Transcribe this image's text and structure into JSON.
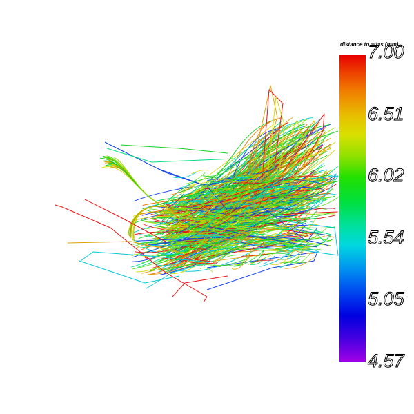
{
  "colorbar": {
    "title": "distance to atlas (mm)",
    "ticks": [
      "7.00",
      "6.51",
      "6.02",
      "5.54",
      "5.05",
      "4.57"
    ],
    "colors": {
      "high": "#e80000",
      "mid": "#20e000",
      "low_mid": "#00d8e0",
      "low": "#0000e0",
      "min": "#a000e8"
    }
  },
  "scene": {
    "background": "#ffffff",
    "palette": [
      "#e81010",
      "#e0a000",
      "#d8d800",
      "#60e020",
      "#10d020",
      "#00e080",
      "#00c8d8",
      "#1040e8",
      "#f07000",
      "#a0e000"
    ]
  }
}
